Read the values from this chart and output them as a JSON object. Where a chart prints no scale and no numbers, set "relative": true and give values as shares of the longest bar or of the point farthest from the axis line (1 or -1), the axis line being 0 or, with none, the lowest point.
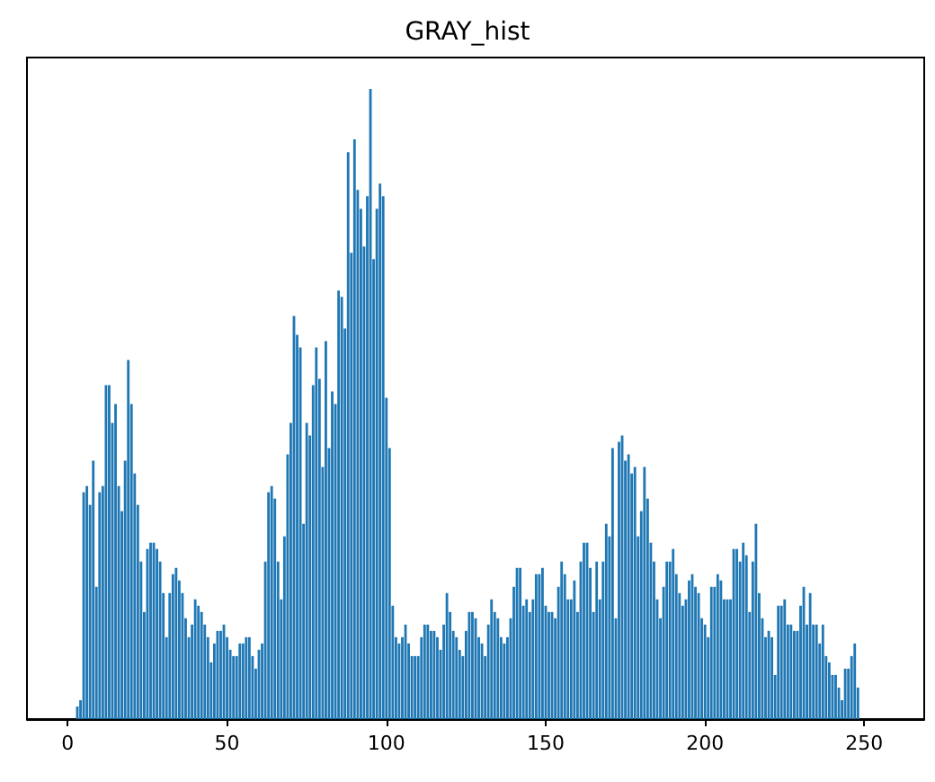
{
  "chart_data": {
    "type": "bar",
    "title": "GRAY_hist",
    "relative": true,
    "color": "#1f77b4",
    "xlim": [
      -12.8,
      268.8
    ],
    "xticks": [
      0,
      50,
      100,
      150,
      200,
      250
    ],
    "tick_labels": "x",
    "x": [
      0,
      1,
      2,
      3,
      4,
      5,
      6,
      7,
      8,
      9,
      10,
      11,
      12,
      13,
      14,
      15,
      16,
      17,
      18,
      19,
      20,
      21,
      22,
      23,
      24,
      25,
      26,
      27,
      28,
      29,
      30,
      31,
      32,
      33,
      34,
      35,
      36,
      37,
      38,
      39,
      40,
      41,
      42,
      43,
      44,
      45,
      46,
      47,
      48,
      49,
      50,
      51,
      52,
      53,
      54,
      55,
      56,
      57,
      58,
      59,
      60,
      61,
      62,
      63,
      64,
      65,
      66,
      67,
      68,
      69,
      70,
      71,
      72,
      73,
      74,
      75,
      76,
      77,
      78,
      79,
      80,
      81,
      82,
      83,
      84,
      85,
      86,
      87,
      88,
      89,
      90,
      91,
      92,
      93,
      94,
      95,
      96,
      97,
      98,
      99,
      100,
      101,
      102,
      103,
      104,
      105,
      106,
      107,
      108,
      109,
      110,
      111,
      112,
      113,
      114,
      115,
      116,
      117,
      118,
      119,
      120,
      121,
      122,
      123,
      124,
      125,
      126,
      127,
      128,
      129,
      130,
      131,
      132,
      133,
      134,
      135,
      136,
      137,
      138,
      139,
      140,
      141,
      142,
      143,
      144,
      145,
      146,
      147,
      148,
      149,
      150,
      151,
      152,
      153,
      154,
      155,
      156,
      157,
      158,
      159,
      160,
      161,
      162,
      163,
      164,
      165,
      166,
      167,
      168,
      169,
      170,
      171,
      172,
      173,
      174,
      175,
      176,
      177,
      178,
      179,
      180,
      181,
      182,
      183,
      184,
      185,
      186,
      187,
      188,
      189,
      190,
      191,
      192,
      193,
      194,
      195,
      196,
      197,
      198,
      199,
      200,
      201,
      202,
      203,
      204,
      205,
      206,
      207,
      208,
      209,
      210,
      211,
      212,
      213,
      214,
      215,
      216,
      217,
      218,
      219,
      220,
      221,
      222,
      223,
      224,
      225,
      226,
      227,
      228,
      229,
      230,
      231,
      232,
      233,
      234,
      235,
      236,
      237,
      238,
      239,
      240,
      241,
      242,
      243,
      244,
      245,
      246,
      247,
      248,
      249,
      250,
      251,
      252,
      253,
      254,
      255
    ],
    "values": [
      0,
      0,
      0,
      0.02,
      0.03,
      0.36,
      0.37,
      0.34,
      0.41,
      0.21,
      0.36,
      0.37,
      0.53,
      0.53,
      0.47,
      0.5,
      0.37,
      0.33,
      0.41,
      0.57,
      0.5,
      0.39,
      0.34,
      0.25,
      0.17,
      0.27,
      0.28,
      0.28,
      0.27,
      0.25,
      0.2,
      0.13,
      0.2,
      0.23,
      0.24,
      0.22,
      0.2,
      0.16,
      0.13,
      0.15,
      0.19,
      0.18,
      0.17,
      0.15,
      0.13,
      0.09,
      0.12,
      0.14,
      0.14,
      0.15,
      0.13,
      0.11,
      0.1,
      0.1,
      0.12,
      0.12,
      0.13,
      0.13,
      0.1,
      0.08,
      0.11,
      0.12,
      0.25,
      0.36,
      0.37,
      0.35,
      0.25,
      0.19,
      0.29,
      0.42,
      0.47,
      0.64,
      0.61,
      0.59,
      0.31,
      0.47,
      0.45,
      0.53,
      0.59,
      0.54,
      0.4,
      0.6,
      0.43,
      0.52,
      0.5,
      0.68,
      0.67,
      0.62,
      0.9,
      0.74,
      0.92,
      0.84,
      0.81,
      0.75,
      0.83,
      1,
      0.73,
      0.81,
      0.85,
      0.83,
      0.51,
      0.43,
      0.18,
      0.13,
      0.12,
      0.13,
      0.15,
      0.12,
      0.1,
      0.1,
      0.1,
      0.13,
      0.15,
      0.15,
      0.14,
      0.14,
      0.13,
      0.11,
      0.15,
      0.2,
      0.17,
      0.14,
      0.13,
      0.11,
      0.1,
      0.14,
      0.17,
      0.17,
      0.16,
      0.13,
      0.12,
      0.1,
      0.15,
      0.19,
      0.17,
      0.16,
      0.13,
      0.12,
      0.13,
      0.16,
      0.21,
      0.24,
      0.24,
      0.18,
      0.19,
      0.17,
      0.19,
      0.23,
      0.23,
      0.24,
      0.18,
      0.17,
      0.17,
      0.16,
      0.21,
      0.25,
      0.23,
      0.19,
      0.19,
      0.22,
      0.17,
      0.25,
      0.28,
      0.28,
      0.24,
      0.17,
      0.25,
      0.19,
      0.25,
      0.31,
      0.29,
      0.43,
      0.16,
      0.44,
      0.45,
      0.41,
      0.42,
      0.39,
      0.4,
      0.29,
      0.33,
      0.4,
      0.35,
      0.28,
      0.25,
      0.19,
      0.16,
      0.21,
      0.25,
      0.25,
      0.27,
      0.23,
      0.2,
      0.18,
      0.19,
      0.22,
      0.23,
      0.21,
      0.2,
      0.16,
      0.15,
      0.13,
      0.21,
      0.21,
      0.23,
      0.22,
      0.19,
      0.19,
      0.19,
      0.27,
      0.27,
      0.25,
      0.28,
      0.26,
      0.17,
      0.25,
      0.31,
      0.2,
      0.16,
      0.13,
      0.14,
      0.13,
      0.07,
      0.18,
      0.18,
      0.19,
      0.15,
      0.15,
      0.14,
      0.14,
      0.18,
      0.21,
      0.15,
      0.2,
      0.15,
      0.15,
      0.12,
      0.15,
      0.1,
      0.09,
      0.07,
      0.07,
      0.05,
      0.03,
      0.08,
      0.08,
      0.1,
      0.12,
      0.05,
      0,
      0,
      0,
      0,
      0,
      0,
      0
    ]
  }
}
